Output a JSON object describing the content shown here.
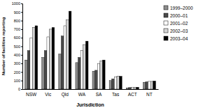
{
  "chart_data": {
    "type": "bar",
    "x_label": "Jurisdiction",
    "y_label": "Number of facilities reporting",
    "categories": [
      "NSW",
      "Vic",
      "Qld",
      "WA",
      "SA",
      "Tas",
      "ACT",
      "NT"
    ],
    "series": [
      {
        "name": "1999–2000",
        "color": "#8c8c8c",
        "values": [
          340,
          370,
          410,
          310,
          210,
          100,
          15,
          80
        ]
      },
      {
        "name": "2000–01",
        "color": "#4a4a4a",
        "values": [
          450,
          450,
          620,
          370,
          220,
          120,
          18,
          85
        ]
      },
      {
        "name": "2001–02",
        "color": "#ffffff",
        "values": [
          600,
          610,
          740,
          450,
          300,
          140,
          20,
          90
        ]
      },
      {
        "name": "2002–03",
        "color": "#d4d4d4",
        "values": [
          720,
          700,
          810,
          520,
          330,
          150,
          20,
          90
        ]
      },
      {
        "name": "2003–04",
        "color": "#000000",
        "values": [
          740,
          720,
          910,
          560,
          340,
          150,
          22,
          95
        ]
      }
    ],
    "ylim": [
      0,
      1000
    ],
    "yticks": [
      0,
      100,
      200,
      300,
      400,
      500,
      600,
      700,
      800,
      900,
      1000
    ],
    "grid": false,
    "legend": "right"
  }
}
